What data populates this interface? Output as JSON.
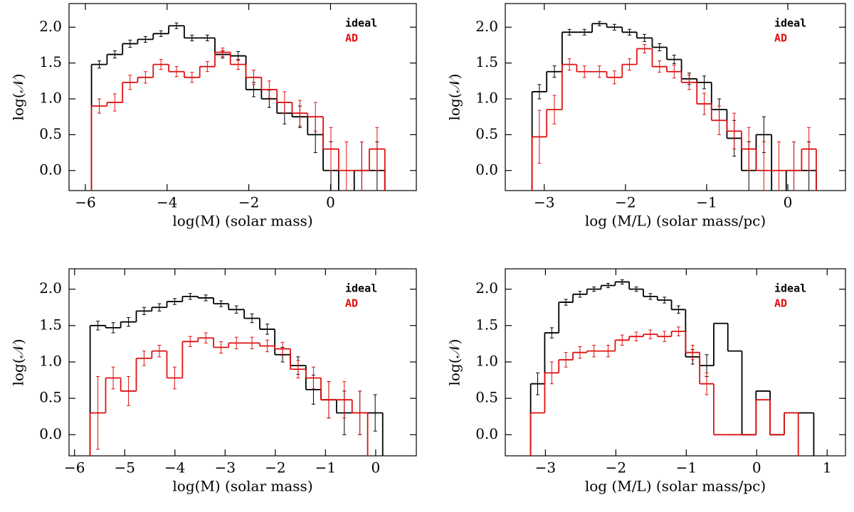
{
  "chart_data": [
    {
      "type": "histogram",
      "xlabel": "log(M) (solar mass)",
      "ylabel": "log(𝒩)",
      "xlim": [
        -6.4,
        2.1
      ],
      "ylim": [
        -0.28,
        2.33
      ],
      "xticks": [
        -6,
        -4,
        -2,
        0
      ],
      "yticks": [
        {
          "value": 0,
          "label": "0.0"
        },
        {
          "value": 0.5,
          "label": "0.5"
        },
        {
          "value": 1,
          "label": "1.0"
        },
        {
          "value": 1.5,
          "label": "1.5"
        },
        {
          "value": 2,
          "label": "2.0"
        }
      ],
      "bins": [
        -5.85,
        -5.47,
        -5.09,
        -4.72,
        -4.34,
        -3.96,
        -3.58,
        -3.2,
        -2.83,
        -2.45,
        -2.07,
        -1.69,
        -1.31,
        -0.94,
        -0.56,
        -0.18,
        0.2,
        0.58,
        0.95,
        1.33
      ],
      "series": [
        {
          "name": "ideal",
          "color": "#000000",
          "values": [
            1.48,
            1.62,
            1.77,
            1.83,
            1.91,
            2.02,
            1.85,
            1.85,
            1.62,
            1.6,
            1.13,
            1.0,
            0.8,
            0.75,
            0.5,
            0.0,
            null,
            0.0,
            0.0
          ],
          "errors": [
            0.05,
            0.05,
            0.05,
            0.04,
            0.04,
            0.04,
            0.04,
            0.04,
            0.05,
            0.06,
            0.1,
            0.12,
            0.15,
            0.15,
            0.25,
            0.4,
            null,
            0.4,
            0.4
          ]
        },
        {
          "name": "AD",
          "color": "#e01010",
          "values": [
            0.9,
            0.95,
            1.23,
            1.3,
            1.48,
            1.38,
            1.3,
            1.45,
            1.65,
            1.48,
            1.3,
            1.13,
            0.95,
            0.8,
            0.75,
            0.3,
            0.0,
            0.0,
            0.3
          ],
          "errors": [
            0.1,
            0.12,
            0.1,
            0.08,
            0.07,
            0.07,
            0.07,
            0.07,
            0.06,
            0.07,
            0.1,
            0.12,
            0.15,
            0.18,
            0.2,
            0.3,
            0.4,
            0.4,
            0.3
          ]
        }
      ]
    },
    {
      "type": "histogram",
      "xlabel": "log (M/L) (solar mass/pc)",
      "ylabel": "log(𝒩)",
      "xlim": [
        -3.48,
        0.71
      ],
      "ylim": [
        -0.28,
        2.33
      ],
      "xticks": [
        -3,
        -2,
        -1,
        0
      ],
      "yticks": [
        {
          "value": 0,
          "label": "0.0"
        },
        {
          "value": 0.5,
          "label": "0.5"
        },
        {
          "value": 1,
          "label": "1.0"
        },
        {
          "value": 1.5,
          "label": "1.5"
        },
        {
          "value": 2,
          "label": "2.0"
        }
      ],
      "bins": [
        -3.15,
        -2.97,
        -2.78,
        -2.6,
        -2.41,
        -2.23,
        -2.04,
        -1.86,
        -1.67,
        -1.49,
        -1.31,
        -1.12,
        -0.94,
        -0.75,
        -0.57,
        -0.39,
        -0.2,
        -0.02,
        0.17,
        0.35
      ],
      "series": [
        {
          "name": "ideal",
          "color": "#000000",
          "values": [
            1.1,
            1.38,
            1.93,
            1.93,
            2.05,
            2.0,
            1.93,
            1.85,
            1.72,
            1.55,
            1.28,
            1.23,
            0.85,
            0.45,
            0.0,
            0.5,
            null,
            0.0,
            0.0
          ],
          "errors": [
            0.1,
            0.08,
            0.04,
            0.04,
            0.03,
            0.04,
            0.04,
            0.05,
            0.05,
            0.06,
            0.08,
            0.09,
            0.15,
            0.25,
            0.4,
            0.25,
            null,
            0.4,
            0.4
          ]
        },
        {
          "name": "AD",
          "color": "#e01010",
          "values": [
            0.47,
            0.85,
            1.48,
            1.38,
            1.38,
            1.3,
            1.48,
            1.7,
            1.45,
            1.38,
            1.23,
            0.93,
            0.7,
            0.55,
            0.3,
            0.0,
            0.0,
            0.0,
            0.3
          ],
          "errors": [
            0.37,
            0.2,
            0.08,
            0.08,
            0.08,
            0.09,
            0.08,
            0.06,
            0.08,
            0.09,
            0.1,
            0.15,
            0.2,
            0.25,
            0.3,
            0.4,
            0.4,
            0.4,
            0.3
          ]
        }
      ]
    },
    {
      "type": "histogram",
      "xlabel": "log(M) (solar mass)",
      "ylabel": "log(𝒩)",
      "xlim": [
        -6.11,
        0.81
      ],
      "ylim": [
        -0.29,
        2.28
      ],
      "xticks": [
        -6,
        -5,
        -4,
        -3,
        -2,
        -1,
        0
      ],
      "yticks": [
        {
          "value": 0,
          "label": "0.0"
        },
        {
          "value": 0.5,
          "label": "0.5"
        },
        {
          "value": 1,
          "label": "1.0"
        },
        {
          "value": 1.5,
          "label": "1.5"
        },
        {
          "value": 2,
          "label": "2.0"
        }
      ],
      "bins": [
        -5.69,
        -5.38,
        -5.08,
        -4.77,
        -4.46,
        -4.16,
        -3.85,
        -3.54,
        -3.23,
        -2.93,
        -2.62,
        -2.31,
        -2.01,
        -1.7,
        -1.39,
        -1.09,
        -0.78,
        -0.47,
        -0.16,
        0.14
      ],
      "series": [
        {
          "name": "ideal",
          "color": "#000000",
          "values": [
            1.5,
            1.47,
            1.55,
            1.7,
            1.75,
            1.83,
            1.9,
            1.88,
            1.8,
            1.72,
            1.6,
            1.45,
            1.1,
            0.95,
            0.62,
            0.48,
            0.3,
            0.3,
            0.3
          ],
          "errors": [
            0.06,
            0.07,
            0.06,
            0.05,
            0.05,
            0.04,
            0.04,
            0.04,
            0.04,
            0.05,
            0.06,
            0.07,
            0.1,
            0.12,
            0.2,
            0.25,
            0.3,
            0.3,
            0.25
          ]
        },
        {
          "name": "AD",
          "color": "#e01010",
          "values": [
            0.3,
            0.78,
            0.6,
            1.05,
            1.15,
            0.78,
            1.28,
            1.33,
            1.2,
            1.26,
            1.26,
            1.22,
            1.18,
            0.9,
            0.78,
            0.48,
            0.48,
            0.3,
            null
          ],
          "errors": [
            0.5,
            0.15,
            0.2,
            0.1,
            0.08,
            0.15,
            0.07,
            0.07,
            0.08,
            0.08,
            0.08,
            0.08,
            0.09,
            0.12,
            0.15,
            0.25,
            0.25,
            0.3,
            null
          ]
        }
      ]
    },
    {
      "type": "histogram",
      "xlabel": "log (M/L) (solar mass/pc)",
      "ylabel": "log(𝒩)",
      "xlim": [
        -3.57,
        1.26
      ],
      "ylim": [
        -0.29,
        2.28
      ],
      "xticks": [
        -3,
        -2,
        -1,
        0,
        1
      ],
      "yticks": [
        {
          "value": 0,
          "label": "0.0"
        },
        {
          "value": 0.5,
          "label": "0.5"
        },
        {
          "value": 1,
          "label": "1.0"
        },
        {
          "value": 1.5,
          "label": "1.5"
        },
        {
          "value": 2,
          "label": "2.0"
        }
      ],
      "bins": [
        -3.21,
        -3.01,
        -2.81,
        -2.61,
        -2.41,
        -2.21,
        -2.01,
        -1.81,
        -1.61,
        -1.41,
        -1.21,
        -1.01,
        -0.81,
        -0.61,
        -0.41,
        -0.21,
        -0.01,
        0.19,
        0.39,
        0.59,
        0.81
      ],
      "series": [
        {
          "name": "ideal",
          "color": "#000000",
          "values": [
            0.7,
            1.4,
            1.82,
            1.93,
            2.0,
            2.05,
            2.1,
            2.0,
            1.9,
            1.85,
            1.72,
            1.07,
            0.95,
            1.53,
            1.15,
            0.0,
            0.6,
            0.0,
            0.3,
            0.3
          ],
          "errors": [
            0.15,
            0.07,
            0.04,
            0.04,
            0.03,
            0.03,
            0.03,
            0.03,
            0.04,
            0.04,
            0.05,
            0.1,
            0.15,
            null,
            null,
            null,
            null,
            null,
            null,
            null
          ]
        },
        {
          "name": "AD",
          "color": "#e01010",
          "values": [
            0.3,
            0.85,
            1.03,
            1.13,
            1.15,
            1.15,
            1.3,
            1.35,
            1.38,
            1.35,
            1.42,
            1.13,
            0.7,
            0.0,
            0.0,
            0.0,
            0.48,
            0.0,
            0.3,
            null
          ],
          "errors": [
            null,
            0.15,
            0.1,
            0.08,
            0.08,
            0.08,
            0.07,
            0.06,
            0.06,
            0.07,
            0.06,
            0.1,
            0.15,
            null,
            null,
            null,
            null,
            null,
            null,
            null
          ]
        }
      ]
    }
  ]
}
